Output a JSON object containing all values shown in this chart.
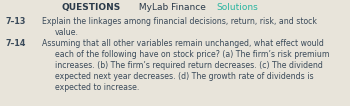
{
  "header_prefix": "QUESTIONS",
  "header_mylab": " MyLab Finance ",
  "header_solutions": "Solutions",
  "bg_color": "#e8e4da",
  "text_color": "#3a4a5a",
  "number_color": "#3a4a5a",
  "solutions_color": "#2ab5a0",
  "header_color": "#2a3a4a",
  "font_size_header": 6.5,
  "font_size_body": 5.6,
  "font_size_number": 5.8
}
